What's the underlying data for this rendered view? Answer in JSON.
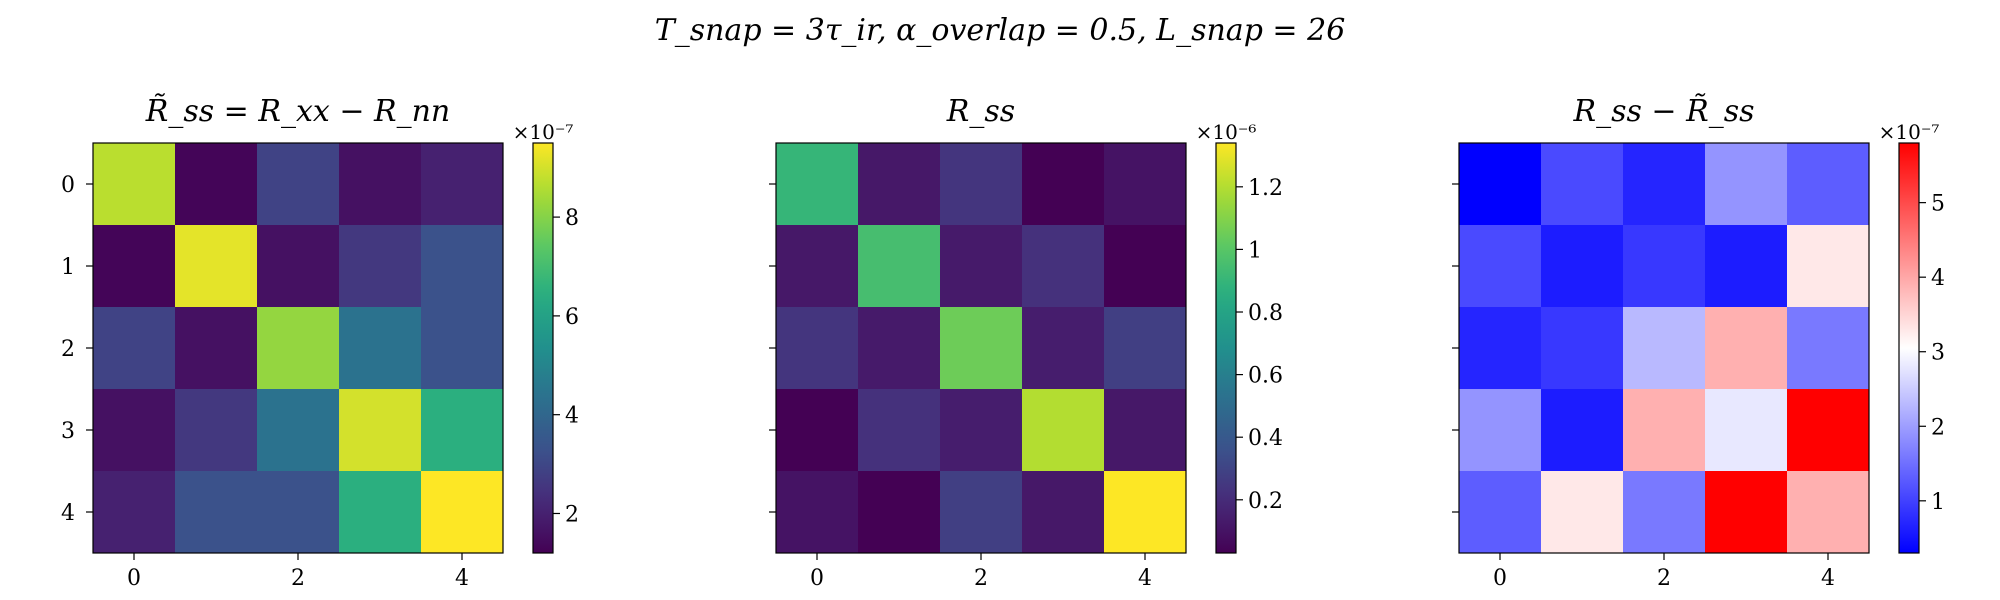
{
  "figure": {
    "suptitle": "T_snap = 3τ_ir,   α_overlap = 0.5,   L_snap = 26"
  },
  "chart_data": [
    {
      "type": "heatmap",
      "title": "R̃_ss = R_xx − R_nn",
      "colormap": "viridis",
      "x_ticks": [
        "0",
        "2",
        "4"
      ],
      "y_ticks": [
        "0",
        "1",
        "2",
        "3",
        "4"
      ],
      "colorbar": {
        "exponent_label": "×10⁻⁷",
        "ticks": [
          2,
          4,
          6,
          8
        ],
        "range": [
          1.2,
          9.5
        ]
      },
      "values": [
        [
          8.7,
          1.3,
          2.9,
          1.6,
          2.0
        ],
        [
          1.3,
          9.2,
          1.6,
          2.6,
          3.3
        ],
        [
          2.9,
          1.6,
          8.2,
          4.4,
          3.3
        ],
        [
          1.6,
          2.6,
          4.4,
          9.0,
          6.5
        ],
        [
          2.0,
          3.3,
          3.3,
          6.5,
          9.5
        ]
      ]
    },
    {
      "type": "heatmap",
      "title": "R_ss",
      "colormap": "viridis",
      "x_ticks": [
        "0",
        "2",
        "4"
      ],
      "y_ticks": [
        "0",
        "1",
        "2",
        "3",
        "4"
      ],
      "colorbar": {
        "exponent_label": "×10⁻⁶",
        "ticks": [
          0.2,
          0.4,
          0.6,
          0.8,
          1.0,
          1.2
        ],
        "range": [
          0.03,
          1.34
        ]
      },
      "values": [
        [
          0.9,
          0.12,
          0.24,
          0.03,
          0.1
        ],
        [
          0.12,
          0.95,
          0.13,
          0.22,
          0.03
        ],
        [
          0.24,
          0.13,
          1.05,
          0.14,
          0.28
        ],
        [
          0.03,
          0.22,
          0.14,
          1.2,
          0.12
        ],
        [
          0.1,
          0.03,
          0.28,
          0.12,
          1.34
        ]
      ]
    },
    {
      "type": "heatmap",
      "title": "R_ss − R̃_ss",
      "colormap": "bwr",
      "x_ticks": [
        "0",
        "2",
        "4"
      ],
      "y_ticks": [
        "0",
        "1",
        "2",
        "3",
        "4"
      ],
      "colorbar": {
        "exponent_label": "×10⁻⁷",
        "ticks": [
          1,
          2,
          3,
          4,
          5
        ],
        "range": [
          0.3,
          5.8
        ]
      },
      "values": [
        [
          0.3,
          1.1,
          0.7,
          1.9,
          1.3
        ],
        [
          1.1,
          0.6,
          0.9,
          0.6,
          3.3
        ],
        [
          0.7,
          0.9,
          2.3,
          3.9,
          1.6
        ],
        [
          1.9,
          0.6,
          3.9,
          2.8,
          5.8
        ],
        [
          1.3,
          3.3,
          1.6,
          5.8,
          3.9
        ]
      ]
    }
  ]
}
